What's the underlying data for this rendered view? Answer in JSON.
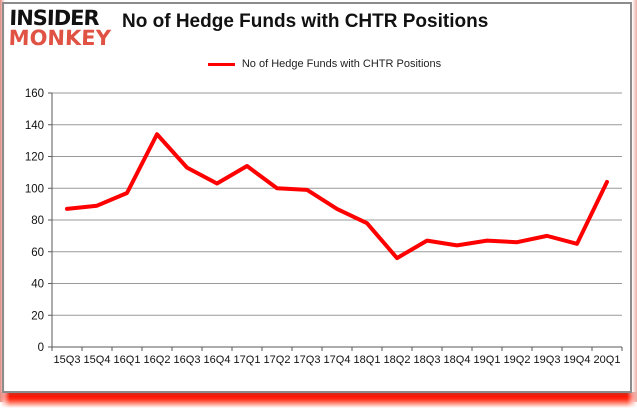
{
  "logo": {
    "line1": "INSIDER",
    "line2": "MONKEY"
  },
  "header": {
    "title": "No of Hedge Funds with CHTR Positions"
  },
  "legend": {
    "label": "No of Hedge Funds with CHTR Positions"
  },
  "chart_data": {
    "type": "line",
    "title": "No of Hedge Funds with CHTR Positions",
    "categories": [
      "15Q3",
      "15Q4",
      "16Q1",
      "16Q2",
      "16Q3",
      "16Q4",
      "17Q1",
      "17Q2",
      "17Q3",
      "17Q4",
      "18Q1",
      "18Q2",
      "18Q3",
      "18Q4",
      "19Q1",
      "19Q2",
      "19Q3",
      "19Q4",
      "20Q1"
    ],
    "series": [
      {
        "name": "No of Hedge Funds with CHTR Positions",
        "values": [
          87,
          89,
          97,
          134,
          113,
          103,
          114,
          100,
          99,
          87,
          78,
          56,
          67,
          64,
          67,
          66,
          70,
          65,
          104
        ]
      }
    ],
    "ylim": [
      0,
      160
    ],
    "ytick_step": 20,
    "grid": true,
    "legend_position": "top",
    "line_color": "#ff0000"
  },
  "colors": {
    "series_red": "#ff0000",
    "logo_red": "#e05243",
    "gridline": "#9a9a9a",
    "axis": "#595959",
    "card_border": "#8c8c8c",
    "text": "#111111"
  }
}
